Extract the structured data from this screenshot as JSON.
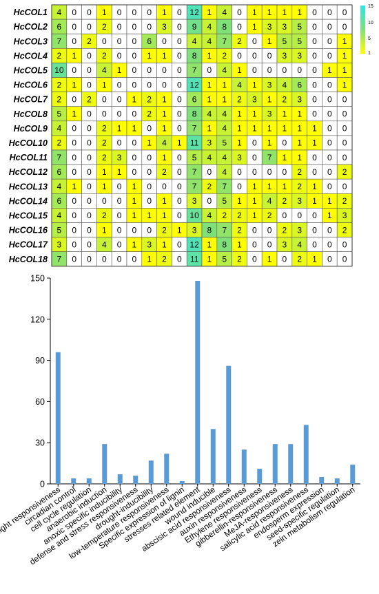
{
  "chart_data": [
    {
      "type": "heatmap",
      "rows": [
        "HcCOL1",
        "HcCOL2",
        "HcCOL3",
        "HcCOL4",
        "HcCOL5",
        "HcCOL6",
        "HcCOL7",
        "HcCOL8",
        "HcCOL9",
        "HcCOL10",
        "HcCOL11",
        "HcCOL12",
        "HcCOL13",
        "HcCOL14",
        "HcCOL15",
        "HcCOL16",
        "HcCOL17",
        "HcCOL18"
      ],
      "values": [
        [
          4,
          0,
          0,
          1,
          0,
          0,
          0,
          1,
          0,
          12,
          1,
          4,
          0,
          1,
          1,
          1,
          1,
          0,
          0,
          0
        ],
        [
          6,
          0,
          0,
          2,
          0,
          0,
          0,
          3,
          0,
          9,
          4,
          8,
          0,
          1,
          3,
          3,
          5,
          0,
          0,
          0
        ],
        [
          7,
          0,
          2,
          0,
          0,
          0,
          6,
          0,
          0,
          4,
          4,
          7,
          2,
          0,
          1,
          5,
          5,
          0,
          0,
          1
        ],
        [
          2,
          1,
          0,
          2,
          0,
          0,
          1,
          1,
          0,
          8,
          1,
          2,
          0,
          0,
          0,
          3,
          3,
          0,
          0,
          1
        ],
        [
          10,
          0,
          0,
          4,
          1,
          0,
          0,
          0,
          0,
          7,
          0,
          4,
          1,
          0,
          0,
          0,
          0,
          0,
          1,
          1
        ],
        [
          2,
          1,
          0,
          1,
          0,
          0,
          0,
          0,
          0,
          12,
          1,
          1,
          4,
          1,
          3,
          4,
          6,
          0,
          0,
          1
        ],
        [
          2,
          0,
          2,
          0,
          0,
          1,
          2,
          1,
          0,
          6,
          1,
          1,
          2,
          3,
          1,
          2,
          3,
          0,
          0,
          0
        ],
        [
          5,
          1,
          0,
          0,
          0,
          0,
          2,
          1,
          0,
          8,
          4,
          4,
          1,
          1,
          3,
          1,
          1,
          0,
          0,
          0
        ],
        [
          4,
          0,
          0,
          2,
          1,
          1,
          0,
          1,
          0,
          7,
          1,
          4,
          1,
          1,
          1,
          1,
          1,
          1,
          0,
          0
        ],
        [
          2,
          0,
          0,
          2,
          0,
          0,
          1,
          4,
          1,
          11,
          3,
          5,
          1,
          0,
          1,
          0,
          1,
          1,
          0,
          0
        ],
        [
          7,
          0,
          0,
          2,
          3,
          0,
          0,
          1,
          0,
          5,
          4,
          4,
          3,
          0,
          7,
          1,
          1,
          0,
          0,
          0
        ],
        [
          6,
          0,
          0,
          1,
          1,
          0,
          0,
          2,
          0,
          7,
          0,
          4,
          0,
          0,
          0,
          0,
          2,
          0,
          0,
          2
        ],
        [
          4,
          1,
          0,
          1,
          0,
          1,
          0,
          0,
          0,
          7,
          2,
          7,
          0,
          1,
          1,
          1,
          2,
          1,
          0,
          0
        ],
        [
          6,
          0,
          0,
          0,
          0,
          1,
          0,
          1,
          0,
          3,
          0,
          5,
          1,
          1,
          4,
          2,
          3,
          1,
          1,
          2
        ],
        [
          4,
          0,
          0,
          2,
          0,
          1,
          1,
          1,
          0,
          10,
          4,
          2,
          2,
          1,
          2,
          0,
          0,
          0,
          1,
          3
        ],
        [
          5,
          0,
          0,
          1,
          0,
          0,
          0,
          2,
          1,
          3,
          8,
          7,
          2,
          0,
          0,
          2,
          3,
          0,
          0,
          2
        ],
        [
          3,
          0,
          0,
          4,
          0,
          1,
          3,
          1,
          0,
          12,
          1,
          8,
          1,
          0,
          0,
          3,
          4,
          0,
          0,
          0
        ],
        [
          7,
          0,
          0,
          0,
          0,
          0,
          1,
          2,
          0,
          11,
          1,
          5,
          2,
          0,
          1,
          0,
          2,
          1,
          0,
          0
        ]
      ],
      "colorscale": {
        "zero": "#ffffff",
        "low": "#ffff00",
        "mid": "#7fe07a",
        "high": "#2ee6e6"
      },
      "legend_ticks": [
        "15",
        "10",
        "5",
        "1"
      ],
      "vmin": 1,
      "vmax": 15
    },
    {
      "type": "bar",
      "categories": [
        "light responsiveness",
        "circadian control",
        "cell cycle regulation",
        "anaerobic induction",
        "anoxic specific inducibility",
        "defense and stress responsiveness",
        "drought-inducibility",
        "low-temperature responsiveness",
        "Specific expression of lignin",
        "stresses related element",
        "wound inducible",
        "abscisic acid responsiveness",
        "auxin responsiveness",
        "Ethylene responsiveness",
        "gibberellin-responsiveness",
        "MeJA-responsiveness",
        "salicylic acid responsiveness",
        "endosperm expression",
        "seed-specific regulation",
        "zein metabolism regulation"
      ],
      "values": [
        96,
        4,
        4,
        29,
        7,
        6,
        17,
        22,
        2,
        148,
        40,
        86,
        25,
        11,
        29,
        29,
        43,
        5,
        4,
        14
      ],
      "ylim": [
        0,
        150
      ],
      "yticks": [
        "0",
        "30",
        "60",
        "90",
        "120",
        "150"
      ],
      "bar_color": "#5b9bd5"
    }
  ]
}
